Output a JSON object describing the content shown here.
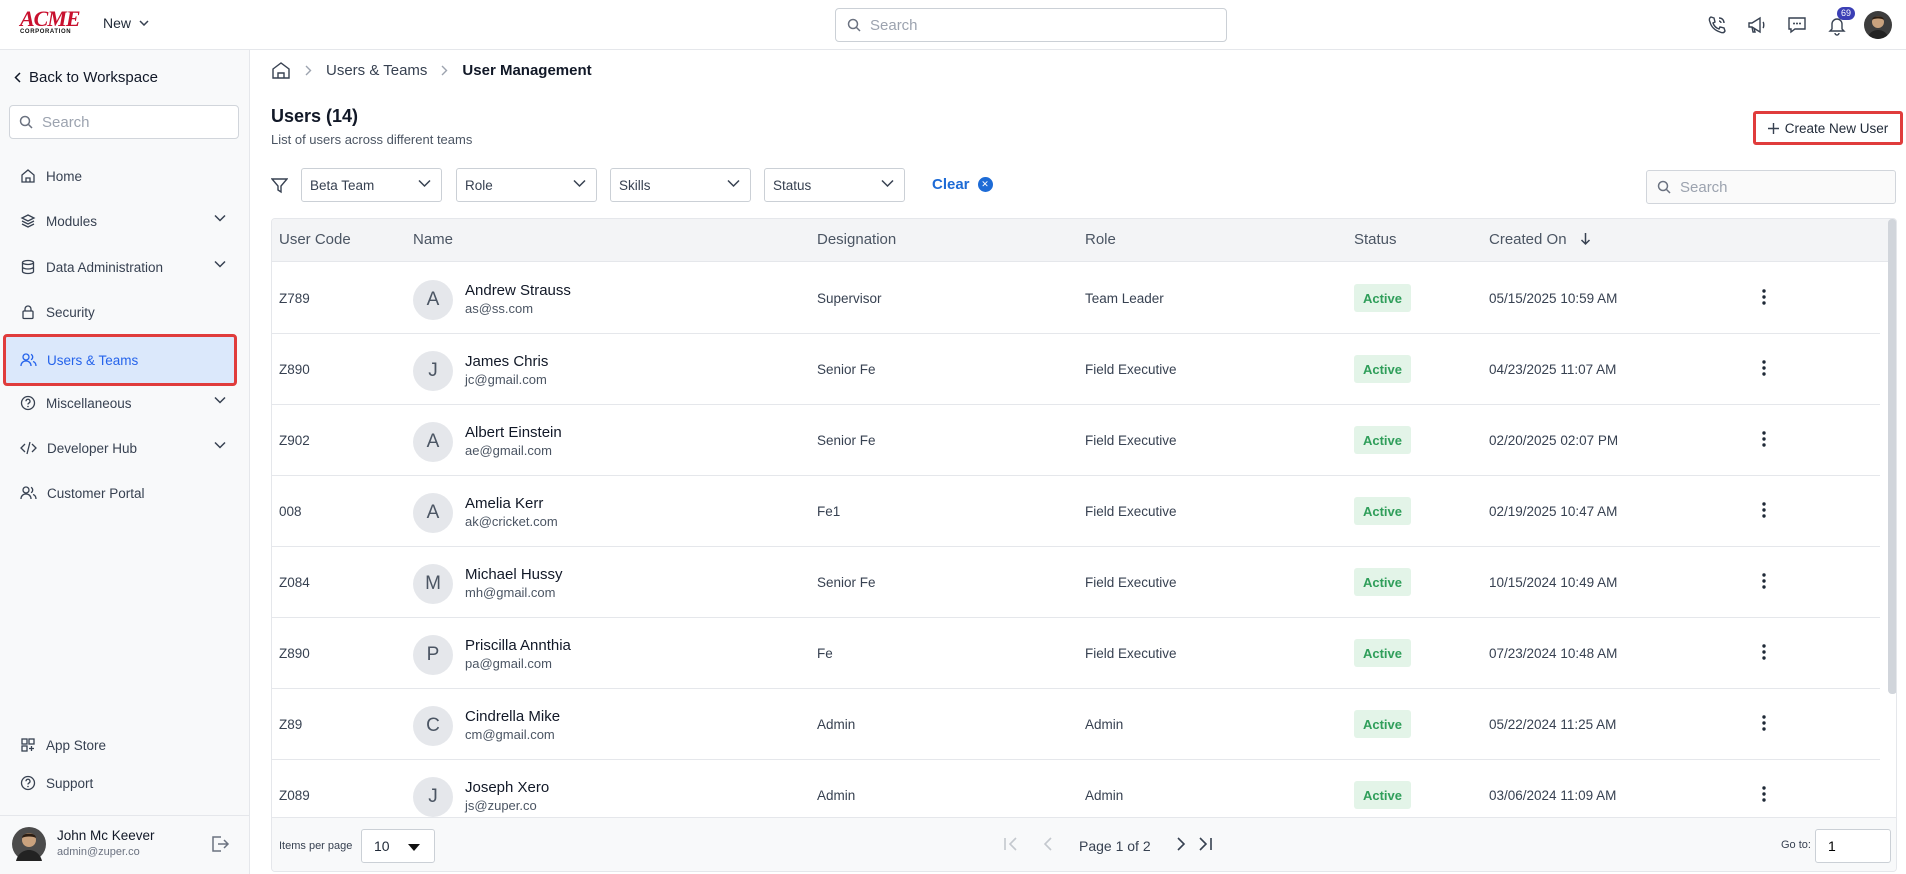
{
  "brand": {
    "logo_text": "ACME",
    "logo_sub": "CORPORATION"
  },
  "topbar": {
    "new_label": "New",
    "search_placeholder": "Search",
    "notifications_count": "69"
  },
  "sidebar": {
    "back_label": "Back to Workspace",
    "search_placeholder": "Search",
    "items": [
      {
        "label": "Home"
      },
      {
        "label": "Modules"
      },
      {
        "label": "Data Administration"
      },
      {
        "label": "Security"
      },
      {
        "label": "Users & Teams"
      },
      {
        "label": "Miscellaneous"
      },
      {
        "label": "Developer Hub"
      },
      {
        "label": "Customer Portal"
      }
    ],
    "bottom_items": [
      {
        "label": "App Store"
      },
      {
        "label": "Support"
      }
    ],
    "user": {
      "name": "John Mc Keever",
      "email": "admin@zuper.co"
    }
  },
  "breadcrumb": {
    "section": "Users & Teams",
    "current": "User Management"
  },
  "page": {
    "title": "Users (14)",
    "subtitle": "List of users across different teams",
    "create_label": "Create New User"
  },
  "filters": {
    "team": "Beta Team",
    "role": "Role",
    "skills": "Skills",
    "status": "Status",
    "clear_label": "Clear",
    "search_placeholder": "Search"
  },
  "table": {
    "headers": {
      "code": "User Code",
      "name": "Name",
      "designation": "Designation",
      "role": "Role",
      "status": "Status",
      "created": "Created On"
    },
    "rows": [
      {
        "code": "Z789",
        "initial": "A",
        "name": "Andrew Strauss",
        "email": "as@ss.com",
        "designation": "Supervisor",
        "role": "Team Leader",
        "status": "Active",
        "created": "05/15/2025 10:59 AM"
      },
      {
        "code": "Z890",
        "initial": "J",
        "name": "James Chris",
        "email": "jc@gmail.com",
        "designation": "Senior Fe",
        "role": "Field Executive",
        "status": "Active",
        "created": "04/23/2025 11:07 AM"
      },
      {
        "code": "Z902",
        "initial": "A",
        "name": "Albert Einstein",
        "email": "ae@gmail.com",
        "designation": "Senior Fe",
        "role": "Field Executive",
        "status": "Active",
        "created": "02/20/2025 02:07 PM"
      },
      {
        "code": "008",
        "initial": "A",
        "name": "Amelia Kerr",
        "email": "ak@cricket.com",
        "designation": "Fe1",
        "role": "Field Executive",
        "status": "Active",
        "created": "02/19/2025 10:47 AM"
      },
      {
        "code": "Z084",
        "initial": "M",
        "name": "Michael Hussy",
        "email": "mh@gmail.com",
        "designation": "Senior Fe",
        "role": "Field Executive",
        "status": "Active",
        "created": "10/15/2024 10:49 AM"
      },
      {
        "code": "Z890",
        "initial": "P",
        "name": "Priscilla Annthia",
        "email": "pa@gmail.com",
        "designation": "Fe",
        "role": "Field Executive",
        "status": "Active",
        "created": "07/23/2024 10:48 AM"
      },
      {
        "code": "Z89",
        "initial": "C",
        "name": "Cindrella Mike",
        "email": "cm@gmail.com",
        "designation": "Admin",
        "role": "Admin",
        "status": "Active",
        "created": "05/22/2024 11:25 AM"
      },
      {
        "code": "Z089",
        "initial": "J",
        "name": "Joseph Xero",
        "email": "js@zuper.co",
        "designation": "Admin",
        "role": "Admin",
        "status": "Active",
        "created": "03/06/2024 11:09 AM"
      }
    ]
  },
  "pagination": {
    "items_per_page_label": "Items per page",
    "items_per_page": "10",
    "page_info": "Page 1 of 2",
    "goto_label": "Go to:",
    "goto_value": "1"
  }
}
